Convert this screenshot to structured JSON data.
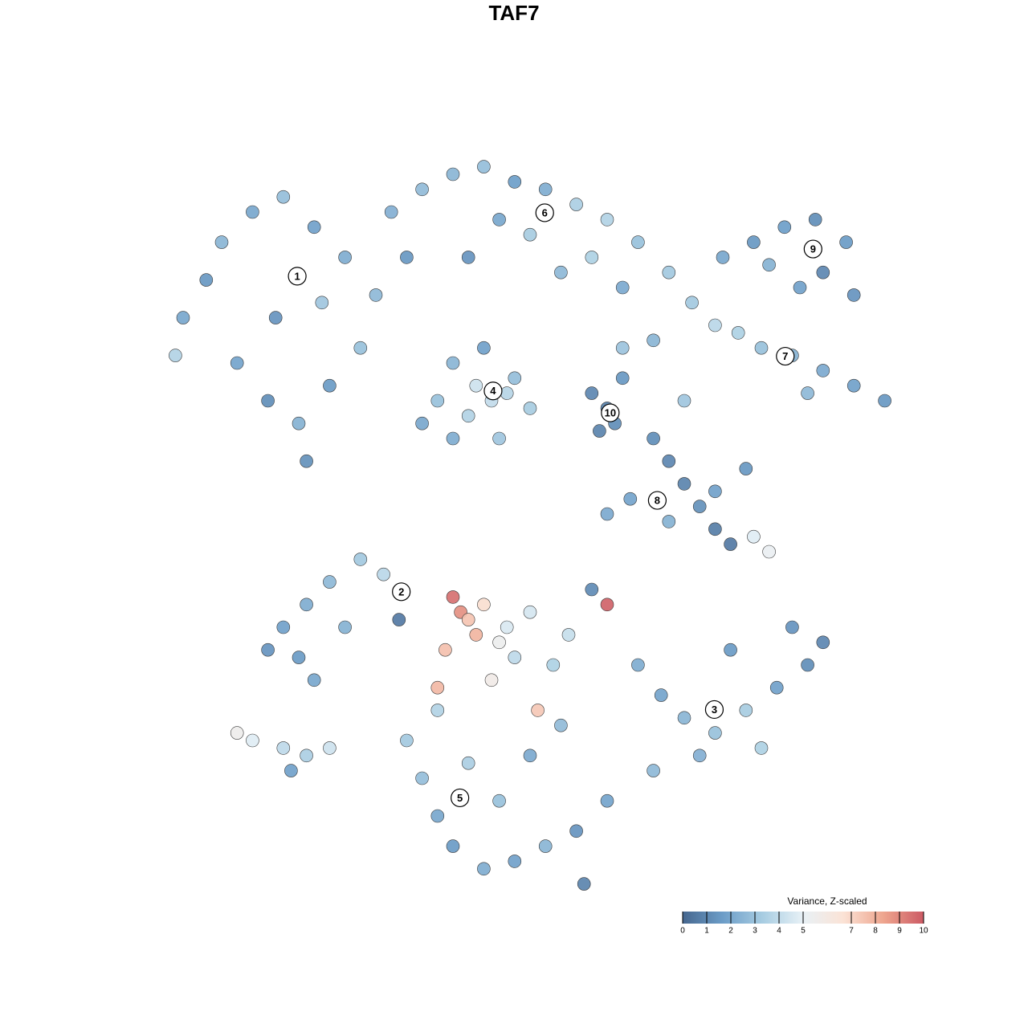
{
  "chart_data": {
    "type": "scatter",
    "title": "TAF7",
    "xlim": [
      0,
      100
    ],
    "ylim": [
      0,
      100
    ],
    "x": [
      5,
      8,
      10,
      14,
      18,
      22,
      26,
      30,
      17,
      12,
      16,
      20,
      24,
      28,
      32,
      36,
      34,
      23,
      4,
      21,
      40,
      44,
      48,
      52,
      56,
      60,
      64,
      68,
      46,
      50,
      58,
      42,
      54,
      62,
      75,
      79,
      83,
      87,
      91,
      88,
      85,
      92,
      81,
      71,
      74,
      77,
      80,
      84,
      88,
      92,
      96,
      86,
      62,
      66,
      70,
      40,
      44,
      48,
      45,
      42,
      38,
      50,
      46,
      40,
      36,
      43,
      47,
      58,
      60,
      61,
      59,
      62,
      66,
      68,
      70,
      72,
      74,
      76,
      79,
      81,
      74,
      78,
      63,
      68,
      60,
      18,
      21,
      24,
      28,
      31,
      26,
      20,
      33,
      22,
      16,
      12,
      14,
      18,
      21,
      24,
      19,
      40,
      41,
      42,
      44,
      43,
      39,
      46,
      47,
      48,
      50,
      45,
      38,
      51,
      60,
      55,
      53,
      64,
      67,
      70,
      74,
      78,
      82,
      86,
      88,
      84,
      76,
      72,
      66,
      80,
      58,
      34,
      36,
      38,
      40,
      44,
      48,
      52,
      56,
      60,
      46,
      42,
      50,
      54,
      38,
      57
    ],
    "y": [
      76,
      81,
      86,
      90,
      92,
      88,
      84,
      79,
      76,
      70,
      65,
      62,
      67,
      72,
      90,
      93,
      84,
      78,
      71,
      57,
      95,
      96,
      94,
      93,
      91,
      89,
      86,
      82,
      89,
      87,
      84,
      84,
      82,
      80,
      84,
      86,
      88,
      89,
      86,
      82,
      80,
      79,
      83,
      78,
      75,
      74,
      72,
      71,
      69,
      67,
      65,
      66,
      72,
      73,
      65,
      70,
      72,
      68,
      65,
      63,
      65,
      64,
      60,
      60,
      62,
      67,
      66,
      66,
      64,
      62,
      61,
      68,
      60,
      57,
      54,
      51,
      48,
      46,
      47,
      45,
      53,
      56,
      52,
      49,
      50,
      35,
      38,
      41,
      44,
      42,
      35,
      31,
      36,
      28,
      32,
      21,
      20,
      19,
      18,
      19,
      16,
      39,
      37,
      36,
      38,
      34,
      32,
      33,
      35,
      31,
      37,
      28,
      27,
      24,
      38,
      34,
      30,
      30,
      26,
      23,
      21,
      24,
      27,
      30,
      33,
      35,
      32,
      18,
      16,
      19,
      40,
      20,
      15,
      10,
      6,
      3,
      4,
      6,
      8,
      12,
      12,
      17,
      18,
      22,
      24,
      1
    ],
    "color_values": [
      2.0,
      1.5,
      2.5,
      2.0,
      2.8,
      1.8,
      2.2,
      2.6,
      1.4,
      1.9,
      1.2,
      2.4,
      1.6,
      2.9,
      2.3,
      2.7,
      1.5,
      3.1,
      3.6,
      1.3,
      2.5,
      2.8,
      1.7,
      2.2,
      3.4,
      3.6,
      2.9,
      3.2,
      2.0,
      3.3,
      3.5,
      1.4,
      2.6,
      2.1,
      2.0,
      1.5,
      1.7,
      1.2,
      1.6,
      1.0,
      1.8,
      1.4,
      2.4,
      3.2,
      3.8,
      3.5,
      2.9,
      2.4,
      2.1,
      1.8,
      1.5,
      2.6,
      3.0,
      2.5,
      3.1,
      2.5,
      1.8,
      2.8,
      4.0,
      3.6,
      2.9,
      3.3,
      3.1,
      2.2,
      2.0,
      4.3,
      3.7,
      1.0,
      0.8,
      1.2,
      0.9,
      1.5,
      1.2,
      1.0,
      0.9,
      1.3,
      0.7,
      0.6,
      4.8,
      5.2,
      1.8,
      1.5,
      1.9,
      2.4,
      2.1,
      1.8,
      2.2,
      2.6,
      3.2,
      3.8,
      2.4,
      1.6,
      0.6,
      2.0,
      1.4,
      5.5,
      4.8,
      3.9,
      3.4,
      4.3,
      1.8,
      9.5,
      8.8,
      7.5,
      6.8,
      7.9,
      7.6,
      5.4,
      4.6,
      3.9,
      4.5,
      5.8,
      7.8,
      7.4,
      9.8,
      4.1,
      3.5,
      2.2,
      1.9,
      2.5,
      2.9,
      3.3,
      1.8,
      1.2,
      1.0,
      1.4,
      1.6,
      2.3,
      2.6,
      3.5,
      1.1,
      3.2,
      2.8,
      2.0,
      1.6,
      2.2,
      1.8,
      2.5,
      1.4,
      1.9,
      2.9,
      3.4,
      2.1,
      2.7,
      3.6,
      0.9
    ],
    "cluster_labels": [
      {
        "text": "1",
        "x": 19.8,
        "y": 81.5
      },
      {
        "text": "6",
        "x": 51.9,
        "y": 89.9
      },
      {
        "text": "9",
        "x": 86.7,
        "y": 85.1
      },
      {
        "text": "7",
        "x": 83.1,
        "y": 70.9
      },
      {
        "text": "4",
        "x": 45.2,
        "y": 66.3
      },
      {
        "text": "10",
        "x": 60.4,
        "y": 63.4
      },
      {
        "text": "8",
        "x": 66.5,
        "y": 51.8
      },
      {
        "text": "2",
        "x": 33.3,
        "y": 39.7
      },
      {
        "text": "3",
        "x": 73.9,
        "y": 24.1
      },
      {
        "text": "5",
        "x": 40.9,
        "y": 12.4
      }
    ],
    "colorbar_title": "Variance, Z-scaled",
    "clim": [
      0,
      10
    ],
    "colorbar_ticks": [
      0,
      1,
      2,
      3,
      4,
      5,
      7,
      8,
      9,
      10
    ],
    "colormap": [
      "#46678f",
      "#6c9dc8",
      "#a8cde2",
      "#e8f1f6",
      "#fbe3d6",
      "#eea58e",
      "#cc5a64"
    ]
  }
}
